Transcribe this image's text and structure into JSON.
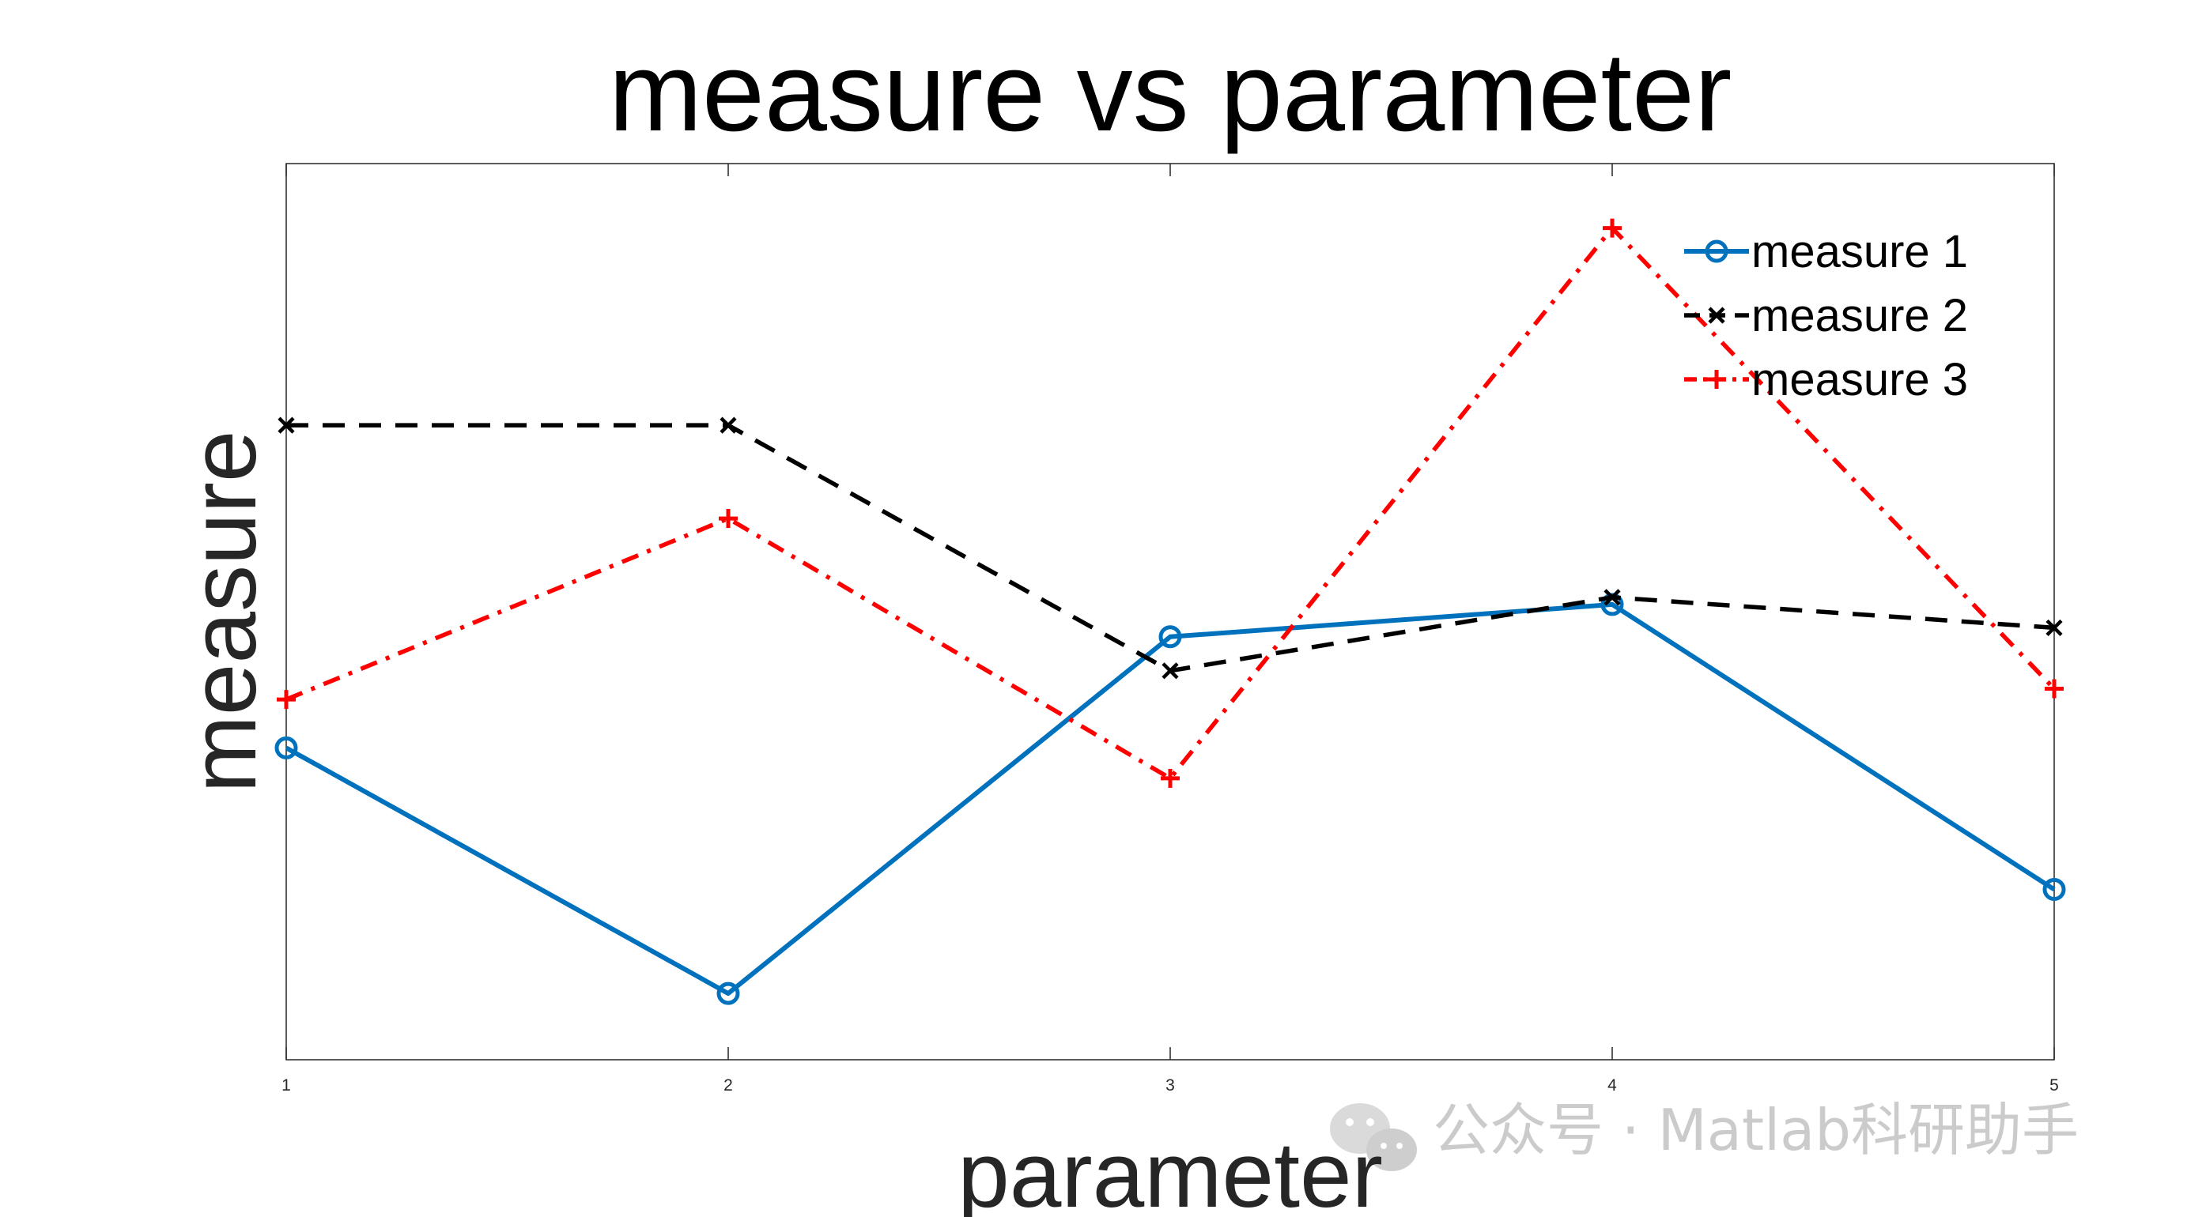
{
  "chart_data": {
    "type": "line",
    "title": "measure vs parameter",
    "xlabel": "parameter",
    "ylabel": "measure",
    "x": [
      1,
      2,
      3,
      4,
      5
    ],
    "xlim": [
      1,
      5
    ],
    "ylim": [
      0,
      1
    ],
    "grid": false,
    "yticks_visible": false,
    "legend_position": "top-right",
    "series": [
      {
        "name": "measure 1",
        "color": "#0072BD",
        "line_style": "solid",
        "marker": "circle",
        "values": [
          0.348,
          0.074,
          0.472,
          0.508,
          0.19
        ]
      },
      {
        "name": "measure 2",
        "color": "#000000",
        "line_style": "dashed",
        "marker": "x",
        "values": [
          0.708,
          0.708,
          0.434,
          0.516,
          0.482
        ]
      },
      {
        "name": "measure 3",
        "color": "#FF0000",
        "line_style": "dash-dot",
        "marker": "plus",
        "values": [
          0.402,
          0.604,
          0.314,
          0.928,
          0.414
        ]
      }
    ]
  },
  "watermark": {
    "text": "公众号 · Matlab科研助手",
    "icon": "wechat-icon"
  }
}
